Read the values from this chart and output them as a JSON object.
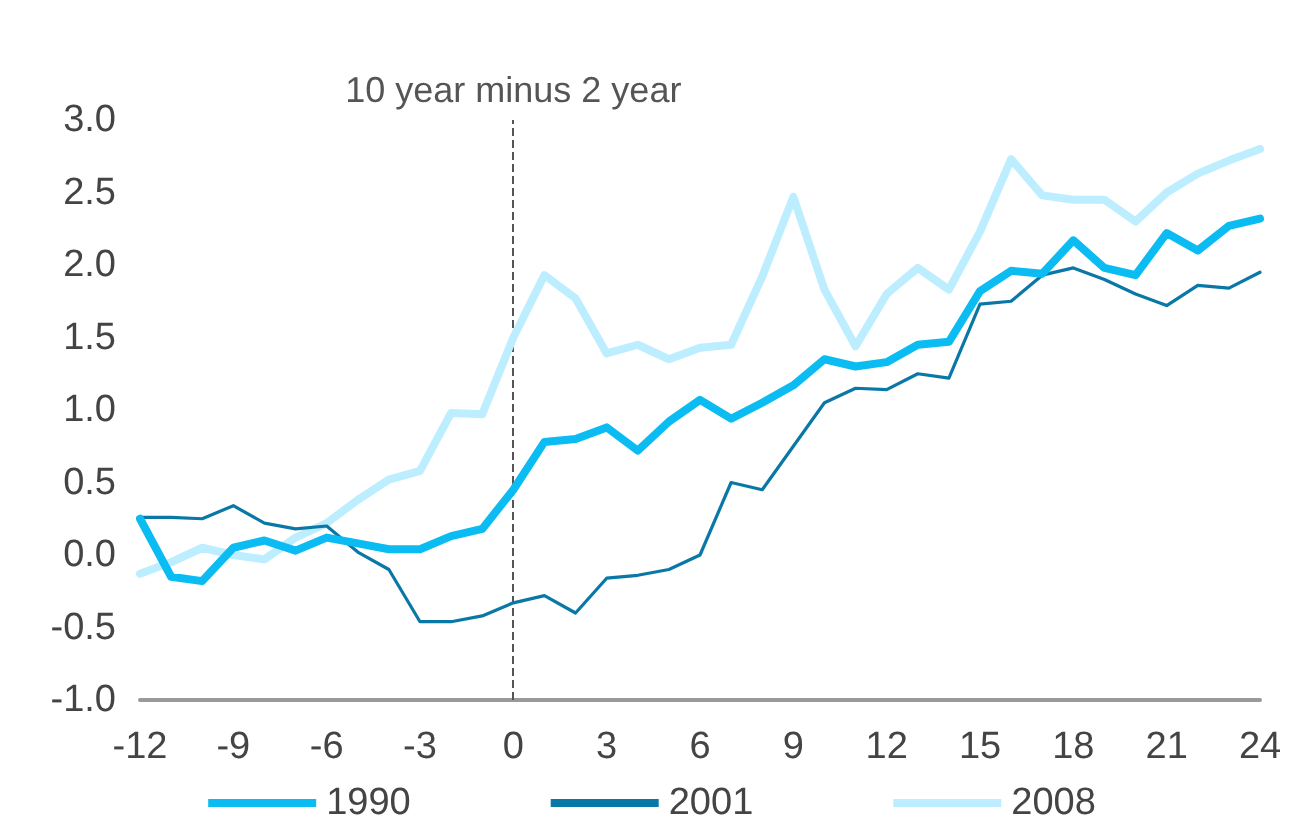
{
  "chart_data": {
    "type": "line",
    "x": [
      -12,
      -11,
      -10,
      -9,
      -8,
      -7,
      -6,
      -5,
      -4,
      -3,
      -2,
      -1,
      0,
      1,
      2,
      3,
      4,
      5,
      6,
      7,
      8,
      9,
      10,
      11,
      12,
      13,
      14,
      15,
      16,
      17,
      18,
      19,
      20,
      21,
      22,
      23,
      24
    ],
    "series": [
      {
        "name": "1990",
        "color": "#0bbcf2",
        "values": [
          0.25,
          -0.15,
          -0.18,
          0.05,
          0.1,
          0.03,
          0.12,
          0.08,
          0.04,
          0.04,
          0.13,
          0.18,
          0.45,
          0.78,
          0.8,
          0.88,
          0.72,
          0.92,
          1.07,
          0.94,
          1.05,
          1.17,
          1.35,
          1.3,
          1.33,
          1.45,
          1.47,
          1.82,
          1.96,
          1.94,
          2.17,
          1.98,
          1.93,
          2.22,
          2.1,
          2.27,
          2.32
        ]
      },
      {
        "name": "2001",
        "color": "#0a78a6",
        "values": [
          0.26,
          0.26,
          0.25,
          0.34,
          0.22,
          0.18,
          0.2,
          0.02,
          -0.1,
          -0.46,
          -0.46,
          -0.42,
          -0.33,
          -0.28,
          -0.4,
          -0.16,
          -0.14,
          -0.1,
          0.0,
          0.5,
          0.45,
          0.75,
          1.05,
          1.15,
          1.14,
          1.25,
          1.22,
          1.73,
          1.75,
          1.93,
          1.98,
          1.9,
          1.8,
          1.72,
          1.86,
          1.84,
          1.95
        ]
      },
      {
        "name": "2008",
        "color": "#bdeeff",
        "values": [
          -0.13,
          -0.05,
          0.05,
          0.0,
          -0.03,
          0.12,
          0.22,
          0.38,
          0.52,
          0.58,
          0.98,
          0.97,
          1.5,
          1.93,
          1.77,
          1.39,
          1.45,
          1.35,
          1.43,
          1.45,
          1.92,
          2.47,
          1.83,
          1.44,
          1.8,
          1.98,
          1.83,
          2.23,
          2.73,
          2.48,
          2.45,
          2.45,
          2.3,
          2.5,
          2.63,
          2.72,
          2.8
        ]
      }
    ],
    "xlim": [
      -12,
      24
    ],
    "xticks": [
      -12,
      -9,
      -6,
      -3,
      0,
      3,
      6,
      9,
      12,
      15,
      18,
      21,
      24
    ],
    "ylim": [
      -1,
      3
    ],
    "yticks": [
      {
        "value": -1,
        "label": "-1.0"
      },
      {
        "value": -0.5,
        "label": "-0.5"
      },
      {
        "value": 0,
        "label": "0.0"
      },
      {
        "value": 0.5,
        "label": "0.5"
      },
      {
        "value": 1,
        "label": "1.0"
      },
      {
        "value": 1.5,
        "label": "1.5"
      },
      {
        "value": 2,
        "label": "2.0"
      },
      {
        "value": 2.5,
        "label": "2.5"
      },
      {
        "value": 3,
        "label": "3.0"
      }
    ],
    "ref_lines": [
      {
        "axis": "x",
        "value": 0,
        "label": "10 year minus 2 year",
        "color": "#555555",
        "line_style": "dashed"
      }
    ],
    "grid": false,
    "legend": "bottom",
    "marker": "none",
    "line_style": "solid"
  }
}
